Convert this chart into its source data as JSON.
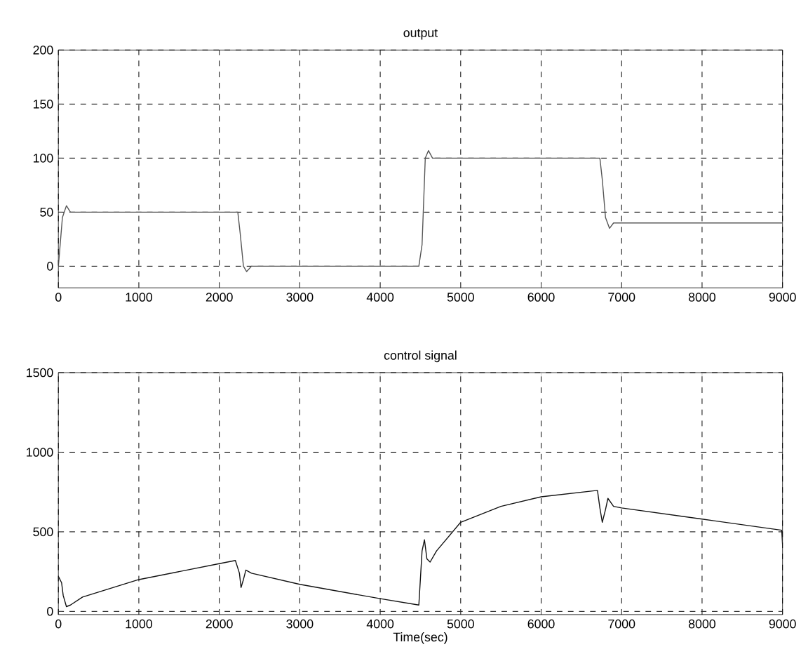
{
  "chart_data": [
    {
      "type": "line",
      "title": "output",
      "xlim": [
        0,
        9000
      ],
      "xticks": [
        0,
        1000,
        2000,
        3000,
        4000,
        5000,
        6000,
        7000,
        8000,
        9000
      ],
      "ylim": [
        -20,
        200
      ],
      "yticks": [
        0,
        50,
        100,
        150,
        200
      ],
      "grid": true,
      "x": [
        0,
        50,
        100,
        150,
        200,
        2230,
        2260,
        2300,
        2340,
        2400,
        4480,
        4520,
        4560,
        4600,
        4650,
        6730,
        6760,
        6800,
        6850,
        6900,
        9000
      ],
      "series": [
        {
          "color": "#555555",
          "values": [
            0,
            45,
            56,
            50,
            50,
            50,
            30,
            0,
            -5,
            0,
            0,
            20,
            100,
            107,
            100,
            100,
            80,
            45,
            35,
            40,
            40
          ]
        }
      ]
    },
    {
      "type": "line",
      "title": "control signal",
      "xlabel": "Time(sec)",
      "xlim": [
        0,
        9000
      ],
      "xticks": [
        0,
        1000,
        2000,
        3000,
        4000,
        5000,
        6000,
        7000,
        8000,
        9000
      ],
      "ylim": [
        -20,
        1500
      ],
      "yticks": [
        0,
        500,
        1000,
        1500
      ],
      "grid": true,
      "x": [
        0,
        40,
        60,
        100,
        150,
        300,
        1000,
        2000,
        2200,
        2250,
        2270,
        2300,
        2330,
        2400,
        3000,
        4000,
        4480,
        4520,
        4550,
        4580,
        4620,
        4700,
        5000,
        5500,
        6000,
        6700,
        6730,
        6760,
        6800,
        6830,
        6900,
        7000,
        8000,
        8990,
        9000
      ],
      "series": [
        {
          "color": "#111111",
          "values": [
            220,
            180,
            100,
            30,
            40,
            90,
            200,
            300,
            320,
            240,
            150,
            200,
            260,
            240,
            170,
            80,
            40,
            380,
            450,
            330,
            310,
            380,
            560,
            660,
            720,
            760,
            650,
            560,
            640,
            710,
            660,
            650,
            580,
            510,
            420
          ]
        }
      ]
    }
  ]
}
